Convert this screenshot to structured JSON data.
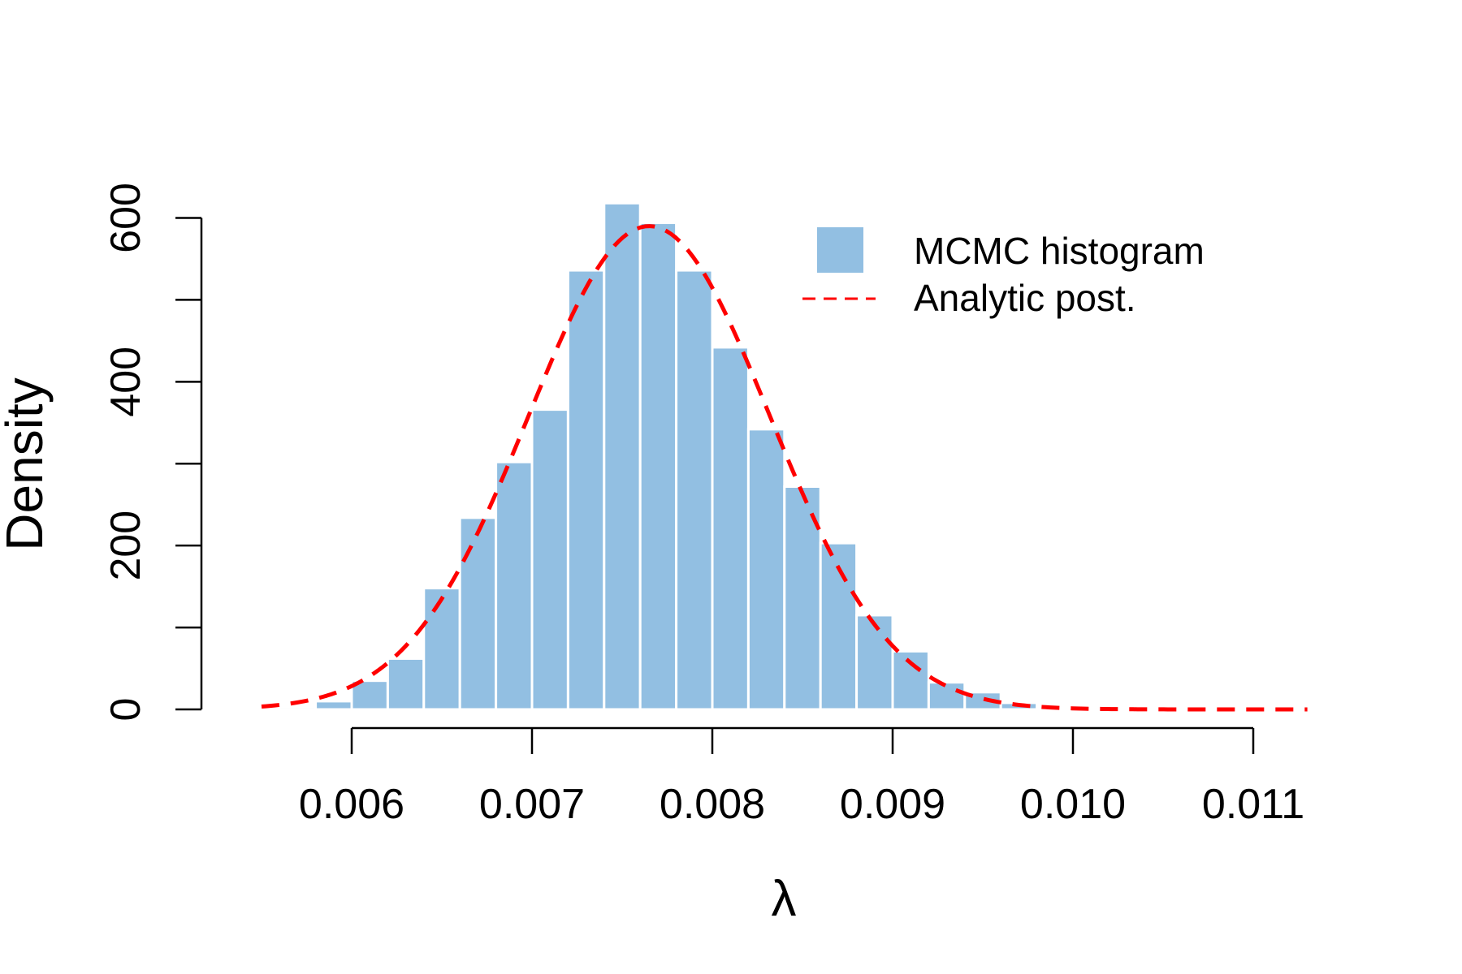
{
  "chart_data": {
    "type": "bar",
    "title": "",
    "xlabel": "λ",
    "ylabel": "Density",
    "xlim": [
      0.00545,
      0.01132
    ],
    "ylim": [
      0,
      600
    ],
    "x_ticks": [
      "0.006",
      "0.007",
      "0.008",
      "0.009",
      "0.010",
      "0.011"
    ],
    "x_tick_values": [
      0.006,
      0.007,
      0.008,
      0.009,
      0.01,
      0.011
    ],
    "y_ticks": [
      "0",
      "200",
      "400",
      "600"
    ],
    "y_tick_values": [
      0,
      100,
      200,
      300,
      400,
      500,
      600
    ],
    "y_labeled_values": [
      0,
      200,
      400,
      600
    ],
    "grid": false,
    "legend_position": "top-right",
    "series": [
      {
        "name": "MCMC histogram",
        "kind": "histogram",
        "color": "#92bfe2",
        "bin_edges": [
          0.0054,
          0.0056,
          0.0058,
          0.006,
          0.0062,
          0.0064,
          0.0066,
          0.0068,
          0.007,
          0.0072,
          0.0074,
          0.0076,
          0.0078,
          0.008,
          0.0082,
          0.0084,
          0.0086,
          0.0088,
          0.009,
          0.0092,
          0.0094,
          0.0096,
          0.0098,
          0.01
        ],
        "values": [
          1,
          3,
          10,
          35,
          62,
          148,
          234,
          302,
          366,
          536,
          618,
          594,
          536,
          442,
          342,
          272,
          203,
          115,
          71,
          33,
          21,
          8,
          1
        ]
      },
      {
        "name": "Analytic post.",
        "kind": "density-curve",
        "color": "#ff0000",
        "dash": true,
        "mean": 0.00765,
        "sd": 0.00067,
        "peak": 590,
        "x_range": [
          0.0055,
          0.0113
        ]
      }
    ]
  }
}
